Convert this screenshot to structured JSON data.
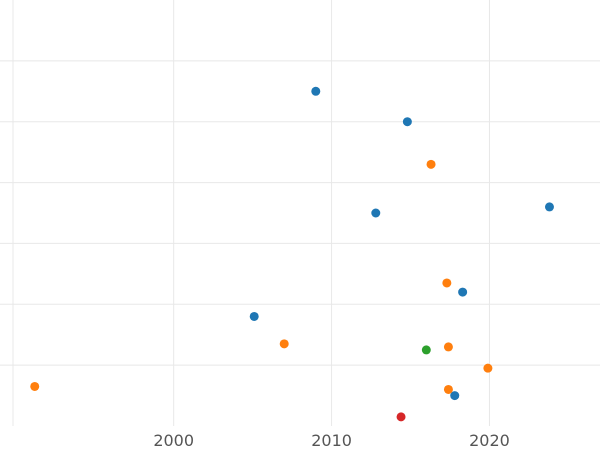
{
  "chart_data": {
    "type": "scatter",
    "title": "",
    "xlabel": "",
    "ylabel": "",
    "xlim": [
      1989,
      2027
    ],
    "ylim": [
      0,
      7
    ],
    "x_ticks": [
      2000,
      2010,
      2020
    ],
    "x_tick_labels": [
      "2000",
      "2010",
      "2020"
    ],
    "y_gridlines": [
      1,
      2,
      3,
      4,
      5,
      6
    ],
    "grid": true,
    "legend": "none",
    "series": [
      {
        "color": "#1f77b4",
        "points": [
          {
            "x": 2009.0,
            "y": 5.5
          },
          {
            "x": 2014.8,
            "y": 5.0
          },
          {
            "x": 2012.8,
            "y": 3.5
          },
          {
            "x": 2023.8,
            "y": 3.6
          },
          {
            "x": 2018.3,
            "y": 2.2
          },
          {
            "x": 2005.1,
            "y": 1.8
          },
          {
            "x": 2017.8,
            "y": 0.5
          }
        ]
      },
      {
        "color": "#ff7f0e",
        "points": [
          {
            "x": 2016.3,
            "y": 4.3
          },
          {
            "x": 2017.3,
            "y": 2.35
          },
          {
            "x": 2007.0,
            "y": 1.35
          },
          {
            "x": 2017.4,
            "y": 1.3
          },
          {
            "x": 2019.9,
            "y": 0.95
          },
          {
            "x": 1991.2,
            "y": 0.65
          },
          {
            "x": 2017.4,
            "y": 0.6
          }
        ]
      },
      {
        "color": "#2ca02c",
        "points": [
          {
            "x": 2016.0,
            "y": 1.25
          }
        ]
      },
      {
        "color": "#d62728",
        "points": [
          {
            "x": 2014.4,
            "y": 0.15
          }
        ]
      }
    ]
  }
}
